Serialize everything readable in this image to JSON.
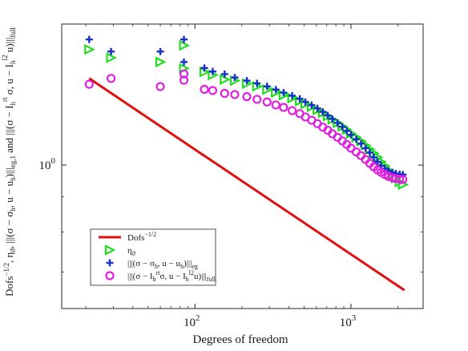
{
  "chart_data": {
    "type": "scatter",
    "xscale": "log",
    "yscale": "log",
    "xlim": [
      14,
      2900
    ],
    "ylim": [
      0.62,
      1.6
    ],
    "grid": false,
    "legend_position": "bottom-left",
    "xlabel": "Degrees of freedom",
    "ylabel_parts": [
      "Dofs",
      "−1/2",
      ", η",
      "ϑ",
      ", |||(σ − σ",
      "h",
      ", u − u",
      "h",
      ")|||",
      "eg,1",
      " and |||(σ − I",
      "h",
      "rt",
      " σ, u − I",
      "h",
      "l2",
      " u)|||",
      "full"
    ],
    "x_ticks": [
      {
        "value": 100,
        "base": "10",
        "exp": "2"
      },
      {
        "value": 1000,
        "base": "10",
        "exp": "3"
      }
    ],
    "y_ticks": [
      {
        "value": 1,
        "base": "10",
        "exp": "0"
      }
    ],
    "series": [
      {
        "name": "Dofs⁻¹ᐟ²",
        "legend_parts": [
          "Dofs",
          "−1/2"
        ],
        "style": "line",
        "color": "#e01010",
        "x": [
          21,
          2200
        ],
        "y": [
          1.335,
          0.659
        ]
      },
      {
        "name": "ηϑ",
        "legend_parts": [
          "η",
          "ϑ"
        ],
        "style": "marker",
        "marker": "triangle-right",
        "color": "#22dd22",
        "x": [
          21,
          29,
          60,
          85,
          85,
          115,
          130,
          155,
          180,
          215,
          250,
          290,
          330,
          370,
          420,
          470,
          510,
          560,
          610,
          660,
          710,
          760,
          820,
          880,
          940,
          1000,
          1080,
          1160,
          1240,
          1320,
          1400,
          1480,
          1560,
          1650,
          1740,
          1840,
          1940,
          2050,
          2150
        ],
        "y": [
          1.47,
          1.43,
          1.41,
          1.49,
          1.38,
          1.364,
          1.35,
          1.33,
          1.325,
          1.312,
          1.3,
          1.286,
          1.274,
          1.262,
          1.25,
          1.238,
          1.226,
          1.214,
          1.202,
          1.19,
          1.177,
          1.164,
          1.151,
          1.138,
          1.125,
          1.111,
          1.097,
          1.083,
          1.068,
          1.054,
          1.04,
          1.026,
          1.011,
          0.997,
          0.983,
          0.969,
          0.957,
          0.945,
          0.937
        ]
      },
      {
        "name": "|||(σ − σh, u − uh)|||eg",
        "legend_parts": [
          "|||(σ − σ",
          "h",
          ", u − u",
          "h",
          ")|||",
          "eg"
        ],
        "style": "marker",
        "marker": "plus",
        "color": "#1530c8",
        "x": [
          21,
          29,
          60,
          85,
          85,
          115,
          130,
          155,
          180,
          215,
          250,
          290,
          330,
          370,
          420,
          470,
          510,
          560,
          610,
          660,
          710,
          760,
          820,
          880,
          940,
          1000,
          1080,
          1160,
          1240,
          1320,
          1400,
          1480,
          1560,
          1650,
          1740,
          1840,
          1940,
          2050,
          2150
        ],
        "y": [
          1.52,
          1.46,
          1.46,
          1.52,
          1.41,
          1.382,
          1.366,
          1.354,
          1.339,
          1.325,
          1.313,
          1.3,
          1.286,
          1.273,
          1.26,
          1.247,
          1.234,
          1.221,
          1.208,
          1.194,
          1.18,
          1.166,
          1.151,
          1.136,
          1.121,
          1.106,
          1.09,
          1.074,
          1.058,
          1.042,
          1.026,
          1.011,
          0.998,
          0.988,
          0.981,
          0.976,
          0.972,
          0.97,
          0.969
        ]
      },
      {
        "name": "|||(σ − Ihrt σ, u − Ihl2 u)|||full",
        "legend_parts": [
          "|||(σ − I",
          "h",
          "rt",
          "σ, u − I",
          "h",
          "l2",
          "u)|||",
          "full"
        ],
        "style": "marker",
        "marker": "circle",
        "color": "#e020e0",
        "x": [
          21,
          29,
          60,
          85,
          85,
          115,
          130,
          155,
          180,
          215,
          250,
          290,
          330,
          370,
          420,
          470,
          510,
          560,
          610,
          660,
          710,
          760,
          820,
          880,
          940,
          1000,
          1080,
          1160,
          1240,
          1320,
          1400,
          1480,
          1560,
          1650,
          1740,
          1840,
          1940,
          2050,
          2150
        ],
        "y": [
          1.309,
          1.335,
          1.299,
          1.355,
          1.327,
          1.287,
          1.282,
          1.27,
          1.265,
          1.256,
          1.245,
          1.234,
          1.222,
          1.212,
          1.199,
          1.187,
          1.174,
          1.161,
          1.148,
          1.135,
          1.123,
          1.11,
          1.097,
          1.084,
          1.071,
          1.058,
          1.045,
          1.032,
          1.019,
          1.006,
          0.994,
          0.984,
          0.976,
          0.969,
          0.963,
          0.959,
          0.956,
          0.954,
          0.953
        ]
      }
    ]
  }
}
